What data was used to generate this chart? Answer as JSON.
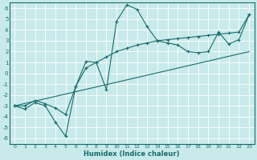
{
  "xlabel": "Humidex (Indice chaleur)",
  "bg_color": "#c8eaea",
  "grid_color": "#ffffff",
  "line_color": "#1a6b6b",
  "xlim": [
    -0.5,
    23.5
  ],
  "ylim": [
    -6.5,
    6.5
  ],
  "xticks": [
    0,
    1,
    2,
    3,
    4,
    5,
    6,
    7,
    8,
    9,
    10,
    11,
    12,
    13,
    14,
    15,
    16,
    17,
    18,
    19,
    20,
    21,
    22,
    23
  ],
  "yticks": [
    -6,
    -5,
    -4,
    -3,
    -2,
    -1,
    0,
    1,
    2,
    3,
    4,
    5,
    6
  ],
  "series1_x": [
    0,
    1,
    2,
    3,
    4,
    5,
    6,
    7,
    8,
    9,
    10,
    11,
    12,
    13,
    14,
    15,
    16,
    17,
    18,
    19,
    20,
    21,
    22,
    23
  ],
  "series1_y": [
    -3,
    -3.3,
    -2.7,
    -3,
    -4.5,
    -5.8,
    -1.2,
    1.1,
    1.0,
    -1.5,
    4.8,
    6.3,
    5.9,
    4.3,
    3.0,
    2.8,
    2.6,
    2.0,
    1.9,
    2.0,
    3.8,
    2.7,
    3.1,
    5.4
  ],
  "series2_x": [
    0,
    1,
    2,
    3,
    4,
    5,
    6,
    7,
    8,
    9,
    10,
    11,
    12,
    13,
    14,
    15,
    16,
    17,
    18,
    19,
    20,
    21,
    22,
    23
  ],
  "series2_y": [
    -3,
    -3.0,
    -2.5,
    -2.8,
    -3.2,
    -3.8,
    -1.2,
    0.5,
    1.0,
    1.5,
    2.0,
    2.3,
    2.6,
    2.8,
    3.0,
    3.1,
    3.2,
    3.3,
    3.4,
    3.5,
    3.6,
    3.7,
    3.8,
    5.4
  ],
  "series3_x": [
    0,
    23
  ],
  "series3_y": [
    -3.0,
    2.0
  ]
}
